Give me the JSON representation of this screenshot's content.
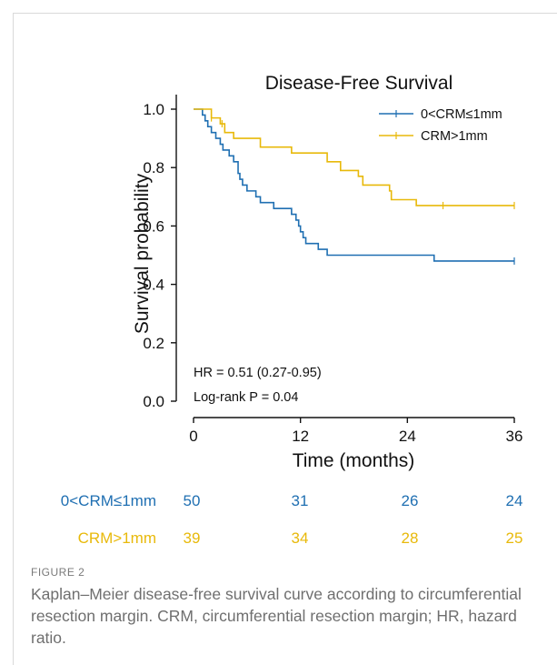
{
  "figure": {
    "label": "FIGURE 2",
    "caption": "Kaplan–Meier disease-free survival curve according to circumferential resection margin. CRM, circumferential resection margin; HR, hazard ratio."
  },
  "chart_data": {
    "type": "line",
    "subtype": "kaplan-meier step",
    "title": "Disease-Free Survival",
    "xlabel": "Time (months)",
    "ylabel": "Survival probability",
    "xlim": [
      0,
      36
    ],
    "ylim": [
      0,
      1.0
    ],
    "xticks": [
      0,
      12,
      24,
      36
    ],
    "yticks": [
      0.0,
      0.2,
      0.4,
      0.6,
      0.8,
      1.0
    ],
    "xtick_labels": [
      "0",
      "12",
      "24",
      "36"
    ],
    "ytick_labels": [
      "0.0",
      "0.2",
      "0.4",
      "0.6",
      "0.8",
      "1.0"
    ],
    "legend_position": "top-right",
    "annotations": [
      "HR = 0.51 (0.27-0.95)",
      "Log-rank P = 0.04"
    ],
    "series": [
      {
        "name": "0<CRM≤1mm",
        "color": "#1f6fb2",
        "steps": [
          [
            0,
            1.0
          ],
          [
            1,
            0.98
          ],
          [
            1.3,
            0.96
          ],
          [
            1.6,
            0.94
          ],
          [
            2,
            0.92
          ],
          [
            2.5,
            0.9
          ],
          [
            3,
            0.88
          ],
          [
            3.3,
            0.86
          ],
          [
            4,
            0.84
          ],
          [
            4.5,
            0.82
          ],
          [
            5,
            0.78
          ],
          [
            5.2,
            0.76
          ],
          [
            5.5,
            0.74
          ],
          [
            6,
            0.72
          ],
          [
            7,
            0.7
          ],
          [
            7.5,
            0.68
          ],
          [
            9,
            0.66
          ],
          [
            11,
            0.64
          ],
          [
            11.5,
            0.62
          ],
          [
            11.8,
            0.6
          ],
          [
            12,
            0.58
          ],
          [
            12.3,
            0.56
          ],
          [
            12.6,
            0.54
          ],
          [
            14,
            0.52
          ],
          [
            15,
            0.5
          ],
          [
            27,
            0.48
          ],
          [
            36,
            0.48
          ]
        ],
        "censor_times": [
          36
        ]
      },
      {
        "name": "CRM>1mm",
        "color": "#e8b90a",
        "steps": [
          [
            0,
            1.0
          ],
          [
            2,
            0.97
          ],
          [
            3,
            0.95
          ],
          [
            3.5,
            0.92
          ],
          [
            4.5,
            0.9
          ],
          [
            7.5,
            0.87
          ],
          [
            11,
            0.85
          ],
          [
            15,
            0.82
          ],
          [
            16.5,
            0.79
          ],
          [
            18.5,
            0.77
          ],
          [
            19,
            0.74
          ],
          [
            22,
            0.72
          ],
          [
            22.2,
            0.69
          ],
          [
            25,
            0.67
          ],
          [
            36,
            0.67
          ]
        ],
        "censor_times": [
          2,
          3.2,
          28,
          36
        ]
      }
    ],
    "risk_table": {
      "times": [
        0,
        12,
        24,
        36
      ],
      "rows": [
        {
          "label": "0<CRM≤1mm",
          "counts": [
            50,
            31,
            26,
            24
          ],
          "color": "#1f6fb2"
        },
        {
          "label": "CRM>1mm",
          "counts": [
            39,
            34,
            28,
            25
          ],
          "color": "#e8b90a"
        }
      ]
    }
  }
}
